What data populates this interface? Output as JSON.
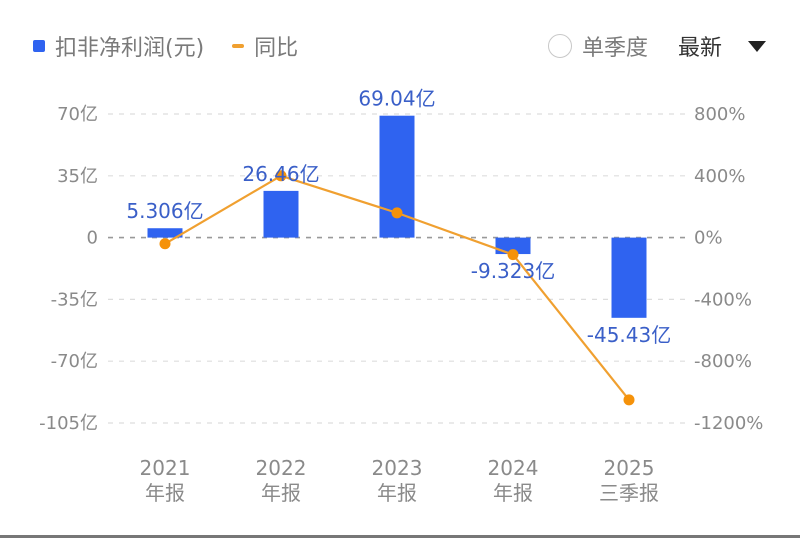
{
  "legend": {
    "bar_label": "扣非净利润(元)",
    "line_label": "同比",
    "bar_color": "#2f63f0",
    "line_color": "#f0a030"
  },
  "controls": {
    "single_quarter_label": "单季度",
    "single_quarter_checked": false,
    "period_label": "最新"
  },
  "axes": {
    "left_ticks": [
      "70亿",
      "35亿",
      "0",
      "-35亿",
      "-70亿",
      "-105亿"
    ],
    "right_ticks": [
      "800%",
      "400%",
      "0%",
      "-400%",
      "-800%",
      "-1200%"
    ]
  },
  "x_labels": [
    {
      "year": "2021",
      "period": "年报"
    },
    {
      "year": "2022",
      "period": "年报"
    },
    {
      "year": "2023",
      "period": "年报"
    },
    {
      "year": "2024",
      "period": "年报"
    },
    {
      "year": "2025",
      "period": "三季报"
    }
  ],
  "data_labels": [
    "5.306亿",
    "26.46亿",
    "69.04亿",
    "-9.323亿",
    "-45.43亿"
  ],
  "chart_data": {
    "type": "bar",
    "title": "",
    "categories": [
      "2021年报",
      "2022年报",
      "2023年报",
      "2024年报",
      "2025三季报"
    ],
    "series": [
      {
        "name": "扣非净利润(元)",
        "type": "bar",
        "axis": "left",
        "unit": "亿",
        "values": [
          5.306,
          26.46,
          69.04,
          -9.323,
          -45.43
        ]
      },
      {
        "name": "同比",
        "type": "line",
        "axis": "right",
        "unit": "%",
        "values": [
          -40,
          400,
          160,
          -110,
          -1050
        ]
      }
    ],
    "ylim_left": [
      -105,
      70
    ],
    "ylim_right": [
      -1200,
      800
    ],
    "left_ticks": [
      70,
      35,
      0,
      -35,
      -70,
      -105
    ],
    "right_ticks": [
      800,
      400,
      0,
      -400,
      -800,
      -1200
    ],
    "grid": true,
    "legend_position": "top-left"
  }
}
